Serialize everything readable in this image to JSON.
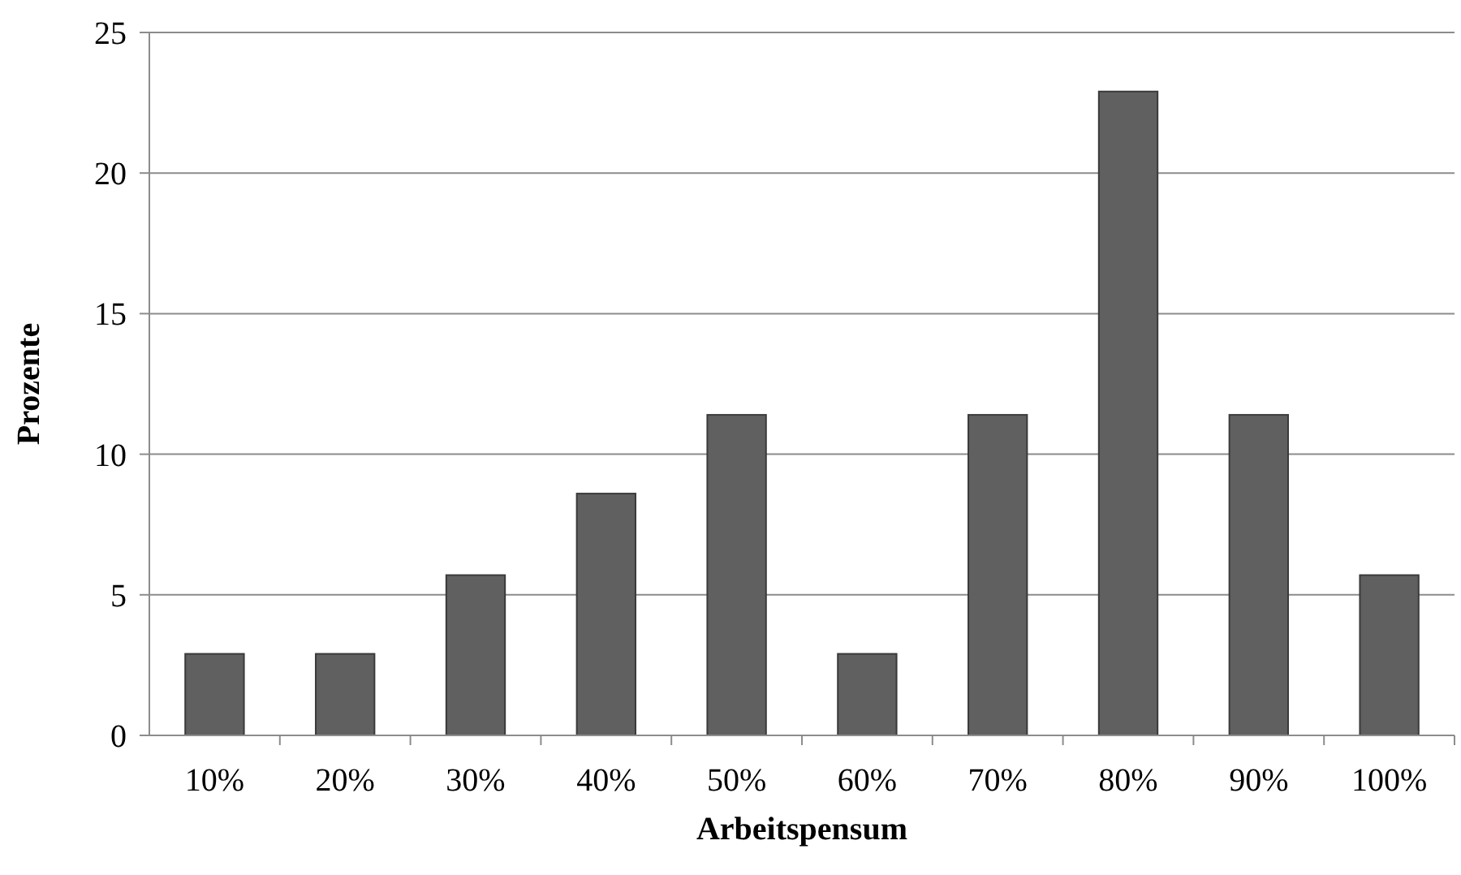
{
  "chart_data": {
    "type": "bar",
    "xlabel": "Arbeitspensum",
    "ylabel": "Prozente",
    "categories": [
      "10%",
      "20%",
      "30%",
      "40%",
      "50%",
      "60%",
      "70%",
      "80%",
      "90%",
      "100%"
    ],
    "values": [
      2.9,
      2.9,
      5.7,
      8.6,
      11.4,
      2.9,
      11.4,
      22.9,
      11.4,
      5.7
    ],
    "color": "#606060",
    "ylim": [
      0,
      25
    ],
    "yticks": [
      0,
      5,
      10,
      15,
      20,
      25
    ],
    "grid": "y"
  }
}
